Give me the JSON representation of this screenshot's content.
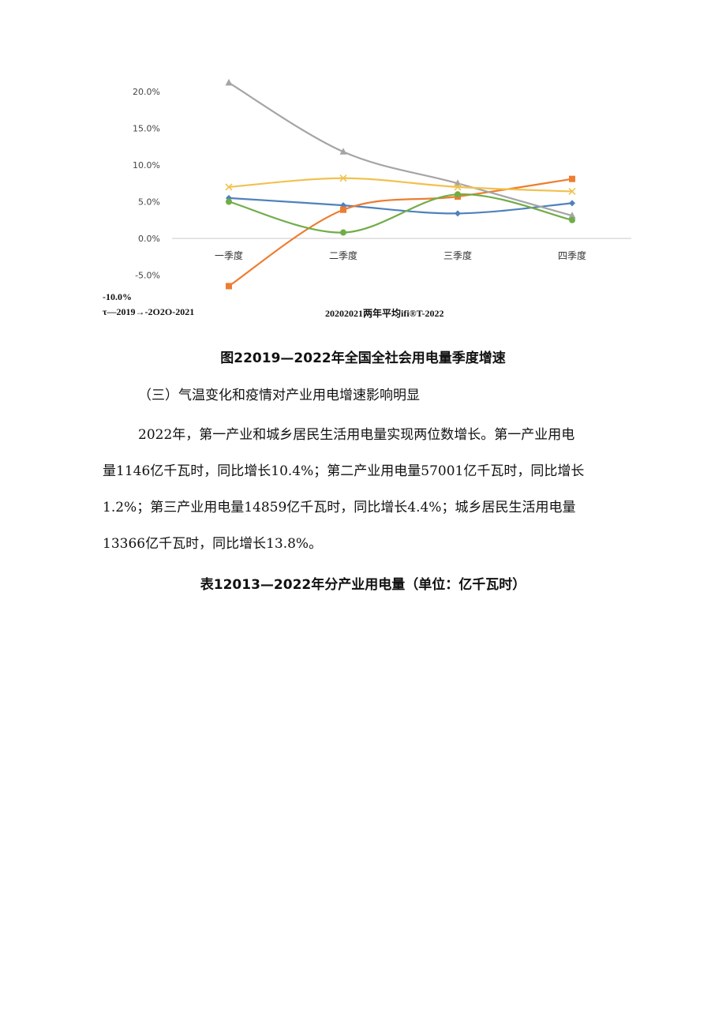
{
  "chart_data": {
    "type": "line",
    "categories": [
      "一季度",
      "二季度",
      "三季度",
      "四季度"
    ],
    "y_ticks": [
      "20.0%",
      "15.0%",
      "10.0%",
      "5.0%",
      "0.0%",
      "-5.0%"
    ],
    "y_min_label": "-10.0%",
    "ylim": [
      -10,
      20
    ],
    "series": [
      {
        "values": [
          5.5,
          4.5,
          3.4,
          4.8
        ],
        "color": "#4f81bd",
        "marker": "diamond"
      },
      {
        "values": [
          -6.5,
          3.9,
          5.7,
          8.1
        ],
        "color": "#ed7d31",
        "marker": "square"
      },
      {
        "values": [
          21.2,
          11.8,
          7.5,
          3.1
        ],
        "color": "#a5a5a5",
        "marker": "triangle"
      },
      {
        "values": [
          7.0,
          8.2,
          7.0,
          6.4
        ],
        "color": "#f2c14e",
        "marker": "x"
      },
      {
        "values": [
          5.0,
          0.8,
          6.0,
          2.5
        ],
        "color": "#70ad47",
        "marker": "circle"
      }
    ],
    "legend_text_left": "τ—2019→-2O2O-2021",
    "legend_text_right": "20202021两年平均ifi®T-2022",
    "grid": false
  },
  "figure_caption": "图22019—2022年全国全社会用电量季度增速",
  "section_heading": "（三）气温变化和疫情对产业用电增速影响明显",
  "paragraph_lines": [
    "2022年，第一产业和城乡居民生活用电量实现两位数增长。第一产业用电",
    "量1146亿千瓦时，同比增长10.4%；第二产业用电量57001亿千瓦时，同比增长",
    "1.2%；第三产业用电量14859亿千瓦时，同比增长4.4%；城乡居民生活用电量",
    "13366亿千瓦时，同比增长13.8%。"
  ],
  "table_caption": "表12013—2022年分产业用电量（单位：亿千瓦时）"
}
